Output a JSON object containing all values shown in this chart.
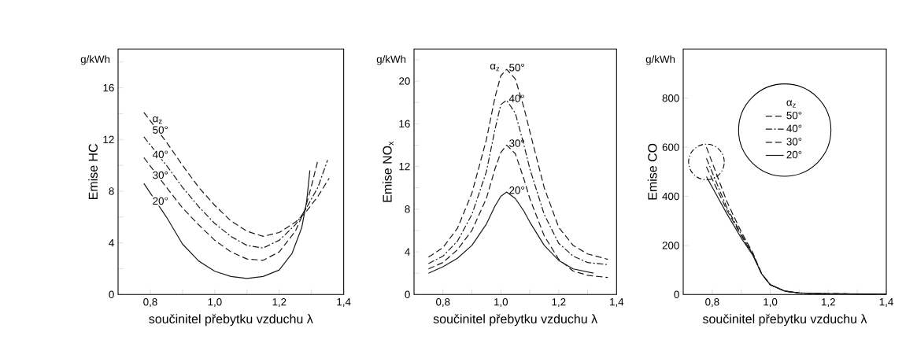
{
  "chart_data": [
    {
      "type": "line",
      "xlabel": "součinitel přebytku vzduchu λ",
      "ylabel": "Emise HC",
      "legend_title": "α$_{z}$",
      "annotations": [
        "g/kWh"
      ],
      "xlim": [
        0.7,
        1.4
      ],
      "ylim": [
        0,
        19
      ],
      "xticks": [
        {
          "value": 0.8,
          "label": "0,8"
        },
        {
          "value": 0.9,
          "label": null
        },
        {
          "value": 1.0,
          "label": "1,0"
        },
        {
          "value": 1.1,
          "label": null
        },
        {
          "value": 1.2,
          "label": "1,2"
        },
        {
          "value": 1.3,
          "label": null
        },
        {
          "value": 1.4,
          "label": "1,4"
        }
      ],
      "yticks": [
        0,
        {
          "value": 2,
          "label": null
        },
        4,
        {
          "value": 6,
          "label": null
        },
        8,
        {
          "value": 10,
          "label": null
        },
        12,
        {
          "value": 14,
          "label": null
        },
        16,
        {
          "value": 18,
          "label": null
        }
      ],
      "series": [
        {
          "name": "50°",
          "color": "#1a1a1a",
          "line_style": "dashed",
          "x": [
            0.78,
            0.85,
            0.9,
            0.95,
            1.0,
            1.05,
            1.1,
            1.15,
            1.2,
            1.25,
            1.28,
            1.32,
            1.355
          ],
          "values": [
            14.1,
            11.8,
            10.0,
            8.3,
            6.9,
            5.7,
            4.9,
            4.5,
            4.8,
            5.6,
            6.3,
            7.6,
            9.0
          ]
        },
        {
          "name": "40°",
          "color": "#1a1a1a",
          "line_style": "dashdot",
          "x": [
            0.78,
            0.85,
            0.9,
            0.95,
            1.0,
            1.05,
            1.1,
            1.15,
            1.2,
            1.25,
            1.28,
            1.32,
            1.35
          ],
          "values": [
            12.2,
            10.0,
            8.3,
            6.8,
            5.5,
            4.5,
            3.8,
            3.6,
            4.2,
            5.4,
            6.5,
            8.3,
            10.4
          ]
        },
        {
          "name": "30°",
          "color": "#1a1a1a",
          "line_style": "dashed",
          "x": [
            0.78,
            0.85,
            0.9,
            0.95,
            1.0,
            1.05,
            1.1,
            1.15,
            1.2,
            1.25,
            1.28,
            1.3,
            1.32
          ],
          "values": [
            10.6,
            8.3,
            6.7,
            5.4,
            4.2,
            3.3,
            2.75,
            2.65,
            3.3,
            4.9,
            6.6,
            8.4,
            10.4
          ]
        },
        {
          "name": "20°",
          "color": "#1a1a1a",
          "line_style": "solid",
          "x": [
            0.78,
            0.85,
            0.9,
            0.95,
            1.0,
            1.05,
            1.1,
            1.15,
            1.2,
            1.24,
            1.27,
            1.285,
            1.295
          ],
          "values": [
            8.6,
            6.0,
            3.9,
            2.6,
            1.8,
            1.4,
            1.25,
            1.4,
            1.9,
            3.2,
            5.2,
            7.2,
            9.6
          ]
        }
      ]
    },
    {
      "type": "line",
      "xlabel": "součinitel přebytku vzduchu λ",
      "ylabel": "Emise NO$_{x}$",
      "legend_title": "α$_{z}$",
      "annotations": [
        "g/kWh"
      ],
      "xlim": [
        0.7,
        1.4
      ],
      "ylim": [
        0,
        23
      ],
      "xticks": [
        {
          "value": 0.8,
          "label": "0,8"
        },
        {
          "value": 0.9,
          "label": null
        },
        {
          "value": 1.0,
          "label": "1,0"
        },
        {
          "value": 1.1,
          "label": null
        },
        {
          "value": 1.2,
          "label": "1,2"
        },
        {
          "value": 1.3,
          "label": null
        },
        {
          "value": 1.4,
          "label": "1,4"
        }
      ],
      "yticks": [
        0,
        {
          "value": 2,
          "label": null
        },
        4,
        {
          "value": 6,
          "label": null
        },
        8,
        {
          "value": 10,
          "label": null
        },
        12,
        {
          "value": 14,
          "label": null
        },
        16,
        {
          "value": 18,
          "label": null
        },
        20,
        {
          "value": 22,
          "label": null
        }
      ],
      "series": [
        {
          "name": "50°",
          "color": "#1a1a1a",
          "line_style": "dashed",
          "x": [
            0.75,
            0.8,
            0.85,
            0.9,
            0.95,
            0.98,
            1.0,
            1.02,
            1.05,
            1.08,
            1.1,
            1.15,
            1.2,
            1.25,
            1.3,
            1.37
          ],
          "values": [
            3.5,
            4.4,
            6.2,
            9.5,
            14.5,
            18.5,
            20.5,
            21.1,
            20.2,
            17.5,
            15.3,
            10.0,
            6.3,
            4.6,
            3.8,
            3.3
          ]
        },
        {
          "name": "40°",
          "color": "#1a1a1a",
          "line_style": "dashdot",
          "x": [
            0.75,
            0.8,
            0.85,
            0.9,
            0.95,
            0.98,
            1.0,
            1.02,
            1.05,
            1.08,
            1.1,
            1.15,
            1.2,
            1.25,
            1.3,
            1.37
          ],
          "values": [
            2.9,
            3.6,
            5.0,
            7.5,
            11.5,
            15.5,
            17.8,
            18.2,
            17.0,
            14.0,
            11.8,
            7.5,
            4.8,
            3.6,
            3.0,
            2.8
          ]
        },
        {
          "name": "30°",
          "color": "#1a1a1a",
          "line_style": "dashed",
          "x": [
            0.75,
            0.8,
            0.85,
            0.9,
            0.95,
            0.98,
            1.0,
            1.02,
            1.05,
            1.08,
            1.1,
            1.15,
            1.2,
            1.25,
            1.3,
            1.37
          ],
          "values": [
            2.4,
            3.0,
            4.2,
            6.0,
            9.0,
            11.8,
            13.3,
            14.0,
            13.2,
            10.8,
            9.0,
            5.5,
            3.3,
            2.2,
            1.8,
            1.6
          ]
        },
        {
          "name": "20°",
          "color": "#1a1a1a",
          "line_style": "solid",
          "x": [
            0.75,
            0.8,
            0.85,
            0.9,
            0.95,
            0.98,
            1.0,
            1.02,
            1.05,
            1.08,
            1.1,
            1.15,
            1.2,
            1.25,
            1.32
          ],
          "values": [
            2.0,
            2.6,
            3.4,
            4.6,
            6.6,
            8.3,
            9.2,
            9.6,
            9.0,
            7.8,
            6.8,
            4.6,
            3.2,
            2.4,
            2.0
          ]
        }
      ]
    },
    {
      "type": "line",
      "xlabel": "součinitel přebytku vzduchu λ",
      "ylabel": "Emise CO",
      "legend_title": "α$_{z}$",
      "annotations": [
        "g/kWh"
      ],
      "legend": "top",
      "xlim": [
        0.7,
        1.4
      ],
      "ylim": [
        0,
        1000
      ],
      "xticks": [
        {
          "value": 0.8,
          "label": "0,8"
        },
        {
          "value": 0.9,
          "label": null
        },
        {
          "value": 1.0,
          "label": "1,0"
        },
        {
          "value": 1.1,
          "label": null
        },
        {
          "value": 1.2,
          "label": "1,2"
        },
        {
          "value": 1.3,
          "label": null
        },
        {
          "value": 1.4,
          "label": "1,4"
        }
      ],
      "yticks": [
        0,
        200,
        400,
        600,
        800
      ],
      "series": [
        {
          "name": "50°",
          "color": "#1a1a1a",
          "line_style": "dashed",
          "x": [
            0.78,
            0.85,
            0.9,
            0.94,
            0.97,
            1.0,
            1.05,
            1.1,
            1.2,
            1.4
          ],
          "values": [
            600,
            380,
            255,
            170,
            85,
            40,
            14,
            6,
            3,
            2
          ]
        },
        {
          "name": "40°",
          "color": "#1a1a1a",
          "line_style": "dashdot",
          "x": [
            0.78,
            0.85,
            0.9,
            0.94,
            0.97,
            1.0,
            1.05,
            1.1,
            1.2,
            1.4
          ],
          "values": [
            555,
            355,
            245,
            165,
            85,
            40,
            14,
            6,
            3,
            2
          ]
        },
        {
          "name": "30°",
          "color": "#1a1a1a",
          "line_style": "dashed",
          "x": [
            0.78,
            0.85,
            0.9,
            0.94,
            0.97,
            1.0,
            1.05,
            1.1,
            1.2,
            1.4
          ],
          "values": [
            520,
            345,
            240,
            162,
            85,
            40,
            14,
            6,
            3,
            2
          ]
        },
        {
          "name": "20°",
          "color": "#1a1a1a",
          "line_style": "solid",
          "x": [
            0.78,
            0.85,
            0.9,
            0.94,
            0.97,
            1.0,
            1.05,
            1.1,
            1.2,
            1.4
          ],
          "values": [
            480,
            330,
            230,
            160,
            85,
            40,
            14,
            6,
            3,
            2
          ]
        }
      ]
    }
  ]
}
